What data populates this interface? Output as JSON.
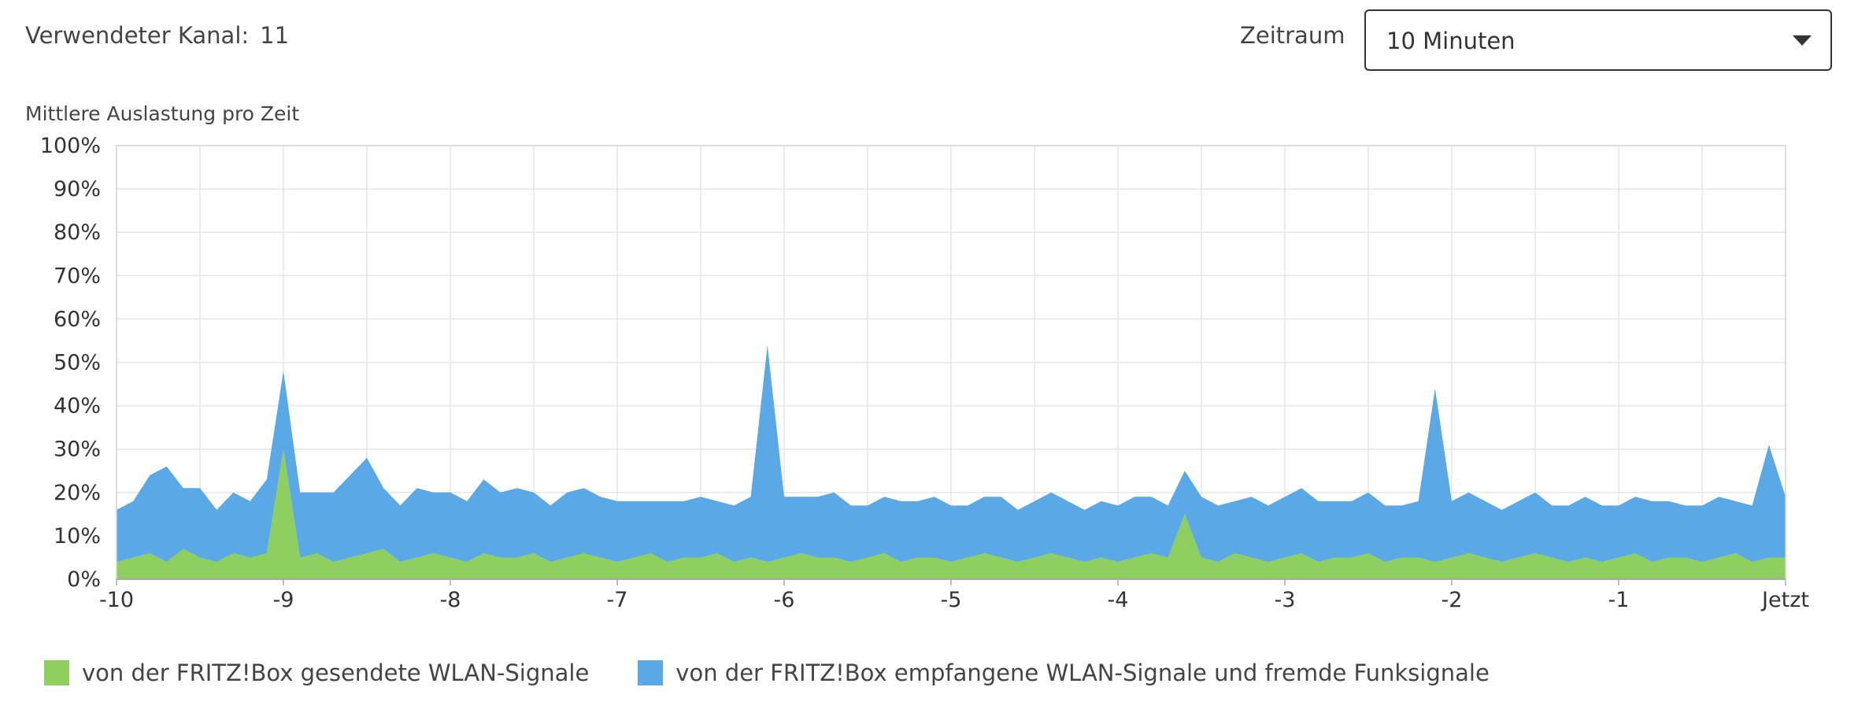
{
  "header": {
    "channel_label": "Verwendeter Kanal:",
    "channel_value": "11",
    "period_label": "Zeitraum",
    "period_selected": "10 Minuten"
  },
  "colors": {
    "sent": "#8ecf5f",
    "received": "#5aa8e6",
    "grid": "#e6e6e6",
    "axis": "#aaaaaa"
  },
  "icons": {
    "dropdown": "chevron-down-icon"
  },
  "chart_data": {
    "type": "area",
    "stacked": true,
    "title": "Mittlere Auslastung pro Zeit",
    "xlabel": "",
    "ylabel": "",
    "xlim": [
      -10,
      0
    ],
    "ylim": [
      0,
      100
    ],
    "grid": true,
    "legend_position": "bottom-left",
    "x_ticks": [
      {
        "value": -10,
        "label": "-10"
      },
      {
        "value": -9,
        "label": "-9"
      },
      {
        "value": -8,
        "label": "-8"
      },
      {
        "value": -7,
        "label": "-7"
      },
      {
        "value": -6,
        "label": "-6"
      },
      {
        "value": -5,
        "label": "-5"
      },
      {
        "value": -4,
        "label": "-4"
      },
      {
        "value": -3,
        "label": "-3"
      },
      {
        "value": -2,
        "label": "-2"
      },
      {
        "value": -1,
        "label": "-1"
      },
      {
        "value": 0,
        "label": "Jetzt"
      }
    ],
    "y_ticks": [
      {
        "value": 0,
        "label": "0%"
      },
      {
        "value": 10,
        "label": "10%"
      },
      {
        "value": 20,
        "label": "20%"
      },
      {
        "value": 30,
        "label": "30%"
      },
      {
        "value": 40,
        "label": "40%"
      },
      {
        "value": 50,
        "label": "50%"
      },
      {
        "value": 60,
        "label": "60%"
      },
      {
        "value": 70,
        "label": "70%"
      },
      {
        "value": 80,
        "label": "80%"
      },
      {
        "value": 90,
        "label": "90%"
      },
      {
        "value": 100,
        "label": "100%"
      }
    ],
    "x": [
      -10.0,
      -9.9,
      -9.8,
      -9.7,
      -9.6,
      -9.5,
      -9.4,
      -9.3,
      -9.2,
      -9.1,
      -9.0,
      -8.9,
      -8.8,
      -8.7,
      -8.6,
      -8.5,
      -8.4,
      -8.3,
      -8.2,
      -8.1,
      -8.0,
      -7.9,
      -7.8,
      -7.7,
      -7.6,
      -7.5,
      -7.4,
      -7.3,
      -7.2,
      -7.1,
      -7.0,
      -6.9,
      -6.8,
      -6.7,
      -6.6,
      -6.5,
      -6.4,
      -6.3,
      -6.2,
      -6.1,
      -6.0,
      -5.9,
      -5.8,
      -5.7,
      -5.6,
      -5.5,
      -5.4,
      -5.3,
      -5.2,
      -5.1,
      -5.0,
      -4.9,
      -4.8,
      -4.7,
      -4.6,
      -4.5,
      -4.4,
      -4.3,
      -4.2,
      -4.1,
      -4.0,
      -3.9,
      -3.8,
      -3.7,
      -3.6,
      -3.5,
      -3.4,
      -3.3,
      -3.2,
      -3.1,
      -3.0,
      -2.9,
      -2.8,
      -2.7,
      -2.6,
      -2.5,
      -2.4,
      -2.3,
      -2.2,
      -2.1,
      -2.0,
      -1.9,
      -1.8,
      -1.7,
      -1.6,
      -1.5,
      -1.4,
      -1.3,
      -1.2,
      -1.1,
      -1.0,
      -0.9,
      -0.8,
      -0.7,
      -0.6,
      -0.5,
      -0.4,
      -0.3,
      -0.2,
      -0.1,
      0.0
    ],
    "series": [
      {
        "name": "von der FRITZ!Box gesendete WLAN-Signale",
        "color": "#8ecf5f",
        "values": [
          4,
          5,
          6,
          4,
          7,
          5,
          4,
          6,
          5,
          6,
          30,
          5,
          6,
          4,
          5,
          6,
          7,
          4,
          5,
          6,
          5,
          4,
          6,
          5,
          5,
          6,
          4,
          5,
          6,
          5,
          4,
          5,
          6,
          4,
          5,
          5,
          6,
          4,
          5,
          4,
          5,
          6,
          5,
          5,
          4,
          5,
          6,
          4,
          5,
          5,
          4,
          5,
          6,
          5,
          4,
          5,
          6,
          5,
          4,
          5,
          4,
          5,
          6,
          5,
          15,
          5,
          4,
          6,
          5,
          4,
          5,
          6,
          4,
          5,
          5,
          6,
          4,
          5,
          5,
          4,
          5,
          6,
          5,
          4,
          5,
          6,
          5,
          4,
          5,
          4,
          5,
          6,
          4,
          5,
          5,
          4,
          5,
          6,
          4,
          5,
          5
        ]
      },
      {
        "name": "von der FRITZ!Box empfangene WLAN-Signale und fremde Funksignale",
        "color": "#5aa8e6",
        "values": [
          12,
          13,
          18,
          22,
          14,
          16,
          12,
          14,
          13,
          17,
          18,
          15,
          14,
          16,
          19,
          22,
          14,
          13,
          16,
          14,
          15,
          14,
          17,
          15,
          16,
          14,
          13,
          15,
          15,
          14,
          14,
          13,
          12,
          14,
          13,
          14,
          12,
          13,
          14,
          50,
          14,
          13,
          14,
          15,
          13,
          12,
          13,
          14,
          13,
          14,
          13,
          12,
          13,
          14,
          12,
          13,
          14,
          13,
          12,
          13,
          13,
          14,
          13,
          12,
          10,
          14,
          13,
          12,
          14,
          13,
          14,
          15,
          14,
          13,
          13,
          14,
          13,
          12,
          13,
          40,
          13,
          14,
          13,
          12,
          13,
          14,
          12,
          13,
          14,
          13,
          12,
          13,
          14,
          13,
          12,
          13,
          14,
          12,
          13,
          26,
          14
        ]
      }
    ]
  }
}
